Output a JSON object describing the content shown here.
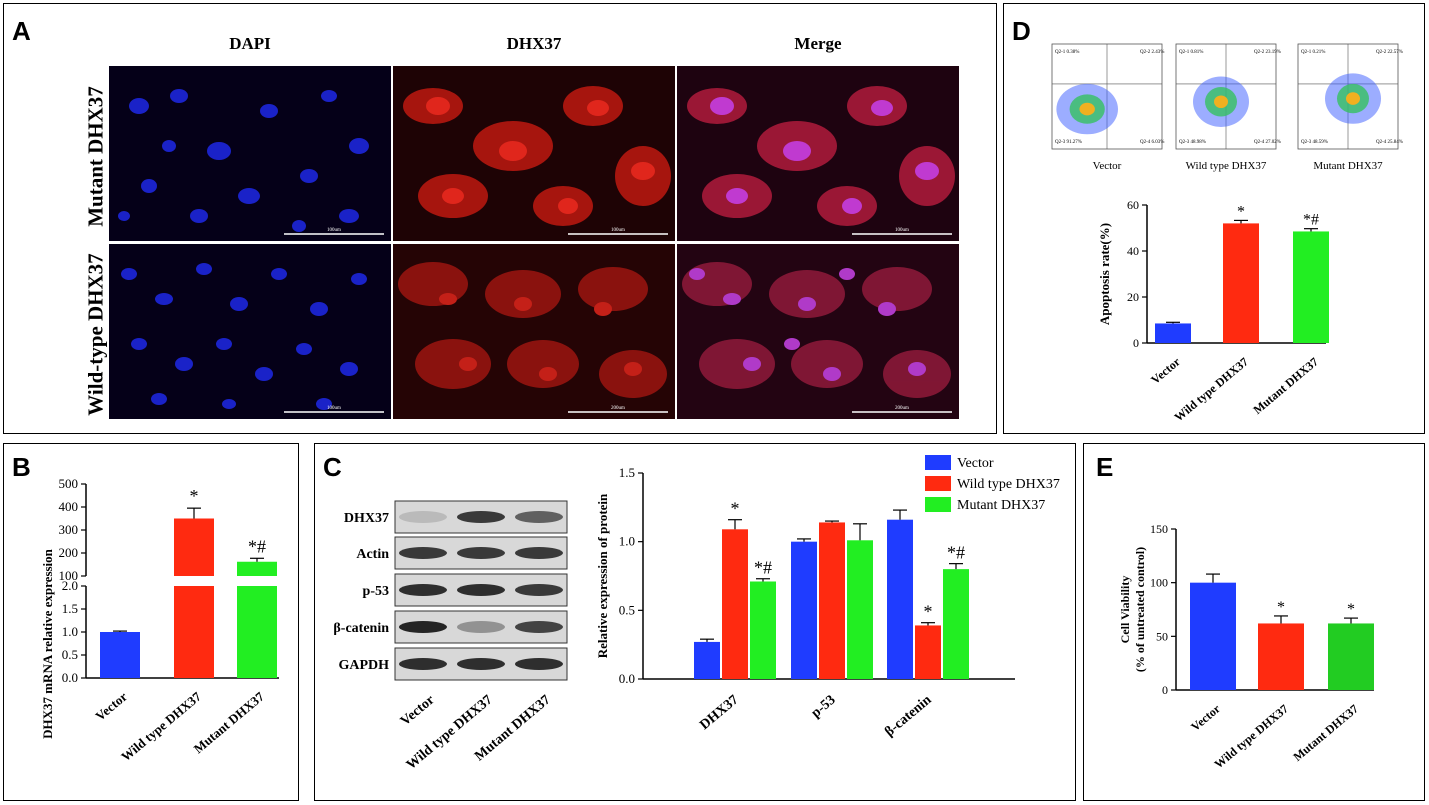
{
  "panelA": {
    "label": "A",
    "columns": [
      "DAPI",
      "DHX37",
      "Merge"
    ],
    "rows": [
      "Mutant DHX37",
      "Wild-type DHX37"
    ],
    "scalebars": [
      [
        "100um",
        "100um",
        "100um"
      ],
      [
        "100um",
        "200um",
        "200um"
      ]
    ]
  },
  "panelB": {
    "label": "B",
    "chart_data": {
      "type": "bar",
      "categories": [
        "Vector",
        "Wild type DHX37",
        "Mutant DHX37"
      ],
      "values": [
        1.0,
        350,
        162
      ],
      "errors": [
        0.02,
        45,
        15
      ],
      "ylabel": "DHX37 mRNA relative expression",
      "axis_break": {
        "lower": [
          0,
          2.0
        ],
        "upper": [
          100,
          500
        ]
      },
      "yticks_lower": [
        "0.0",
        "0.5",
        "1.0",
        "1.5",
        "2.0"
      ],
      "yticks_upper": [
        "100",
        "200",
        "300",
        "400",
        "500"
      ],
      "annotations": [
        "",
        "*",
        "*#"
      ],
      "colors": [
        "#1f3cff",
        "#ff2a10",
        "#22ee22"
      ]
    }
  },
  "panelC": {
    "label": "C",
    "blot_labels": [
      "DHX37",
      "Actin",
      "p-53",
      "β-catenin",
      "GAPDH"
    ],
    "lanes": [
      "Vector",
      "Wild type DHX37",
      "Mutant DHX37"
    ],
    "chart_data": {
      "type": "bar",
      "categories": [
        "DHX37",
        "p-53",
        "β-catenin"
      ],
      "series": [
        {
          "name": "Vector",
          "values": [
            0.27,
            1.0,
            1.16
          ],
          "errors": [
            0.02,
            0.02,
            0.07
          ],
          "color": "#1f3cff"
        },
        {
          "name": "Wild type DHX37",
          "values": [
            1.09,
            1.14,
            0.39
          ],
          "errors": [
            0.07,
            0.01,
            0.02
          ],
          "color": "#ff2a10"
        },
        {
          "name": "Mutant DHX37",
          "values": [
            0.71,
            1.01,
            0.8
          ],
          "errors": [
            0.02,
            0.12,
            0.04
          ],
          "color": "#22ee22"
        }
      ],
      "annotations": [
        [
          "",
          "*",
          "*#"
        ],
        [
          "",
          "",
          ""
        ],
        [
          "",
          "*",
          "*#"
        ]
      ],
      "ylabel": "Relative expression of protein",
      "ylim": [
        0,
        1.5
      ],
      "yticks": [
        "0.0",
        "0.5",
        "1.0",
        "1.5"
      ],
      "legend_position": "top-right"
    }
  },
  "panelD": {
    "label": "D",
    "flow_labels": [
      "Vector",
      "Wild type DHX37",
      "Mutant DHX37"
    ],
    "quadrants": [
      [
        "Q2-1 0.38%",
        "Q2-2 2.43%",
        "Q2-3 91.27%",
        "Q2-4 6.03%"
      ],
      [
        "Q2-1 0.81%",
        "Q2-2 23.19%",
        "Q2-3 48.98%",
        "Q2-4 27.02%"
      ],
      [
        "Q2-1 0.21%",
        "Q2-2 22.57%",
        "Q2-3 48.59%",
        "Q2-4 25.84%"
      ]
    ],
    "chart_data": {
      "type": "bar",
      "categories": [
        "Vector",
        "Wild type DHX37",
        "Mutant DHX37"
      ],
      "values": [
        8.5,
        52.0,
        48.5
      ],
      "errors": [
        0.5,
        1.3,
        1.2
      ],
      "ylabel": "Apoptosis rate(%)",
      "ylim": [
        0,
        60
      ],
      "yticks": [
        "0",
        "20",
        "40",
        "60"
      ],
      "annotations": [
        "",
        "*",
        "*#"
      ],
      "colors": [
        "#1f3cff",
        "#ff2a10",
        "#22ee22"
      ]
    }
  },
  "panelE": {
    "label": "E",
    "chart_data": {
      "type": "bar",
      "categories": [
        "Vector",
        "Wild type DHX37",
        "Mutant DHX37"
      ],
      "values": [
        100,
        62,
        62
      ],
      "errors": [
        8,
        7,
        5
      ],
      "ylabel": "Cell Viability",
      "ylabel2": "(% of untreated control)",
      "ylim": [
        0,
        150
      ],
      "yticks": [
        "0",
        "50",
        "100",
        "150"
      ],
      "annotations": [
        "",
        "*",
        "*"
      ],
      "colors": [
        "#1f3cff",
        "#ff2a10",
        "#22cc22"
      ]
    }
  }
}
